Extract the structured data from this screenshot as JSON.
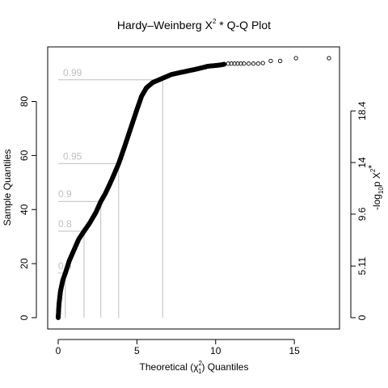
{
  "chart_data": {
    "type": "scatter",
    "title_parts": [
      "Hardy–Weinberg  X",
      "2",
      "  * Q-Q Plot"
    ],
    "xlabel_parts": [
      "Theoretical  (χ",
      "2",
      "1",
      ")  Quantiles"
    ],
    "ylabel": "Sample Quantiles",
    "y2label_parts": [
      "-log",
      "10",
      "p X",
      "2",
      "*"
    ],
    "xlim": [
      0,
      17.2
    ],
    "ylim": [
      0,
      96
    ],
    "x_ticks": [
      0,
      5,
      10,
      15
    ],
    "x_tick_labels": [
      "0",
      "5",
      "10",
      "15"
    ],
    "y_ticks": [
      0,
      20,
      40,
      60,
      80
    ],
    "y_tick_labels": [
      "0",
      "20",
      "40",
      "60",
      "80"
    ],
    "y2_ticks": [
      0,
      19.1,
      38.3,
      57.4,
      76.5
    ],
    "y2_tick_labels": [
      "0",
      "5.11",
      "9.6",
      "14",
      "18.4"
    ],
    "grid": false,
    "quantile_markers": [
      {
        "label": "0.5",
        "x": 0.455,
        "y": 16.5
      },
      {
        "label": "0.8",
        "x": 1.642,
        "y": 32
      },
      {
        "label": "0.9",
        "x": 2.706,
        "y": 43
      },
      {
        "label": "0.95",
        "x": 3.841,
        "y": 57
      },
      {
        "label": "0.99",
        "x": 6.635,
        "y": 88
      }
    ],
    "curve": [
      [
        0,
        0
      ],
      [
        0.05,
        5
      ],
      [
        0.15,
        10
      ],
      [
        0.3,
        14
      ],
      [
        0.455,
        16.5
      ],
      [
        0.7,
        21
      ],
      [
        1.0,
        25
      ],
      [
        1.3,
        29
      ],
      [
        1.642,
        32
      ],
      [
        2.0,
        35
      ],
      [
        2.4,
        39
      ],
      [
        2.706,
        43
      ],
      [
        3.0,
        46
      ],
      [
        3.4,
        51
      ],
      [
        3.841,
        57
      ],
      [
        4.2,
        63
      ],
      [
        4.6,
        70
      ],
      [
        5.0,
        77
      ],
      [
        5.3,
        82
      ],
      [
        5.6,
        85
      ],
      [
        6.0,
        87
      ],
      [
        6.4,
        88
      ],
      [
        6.8,
        89
      ],
      [
        7.2,
        90
      ],
      [
        8.0,
        91
      ],
      [
        8.8,
        92
      ],
      [
        9.5,
        93
      ],
      [
        10.3,
        93.5
      ],
      [
        10.6,
        93.8
      ]
    ],
    "tail_points": [
      [
        10.8,
        94
      ],
      [
        11.0,
        94
      ],
      [
        11.2,
        94
      ],
      [
        11.4,
        94
      ],
      [
        11.6,
        94
      ],
      [
        11.8,
        94
      ],
      [
        12.1,
        94
      ],
      [
        12.4,
        94
      ],
      [
        12.7,
        94
      ],
      [
        13.0,
        94.2
      ],
      [
        13.5,
        95
      ],
      [
        14.1,
        95
      ],
      [
        15.1,
        96
      ],
      [
        17.2,
        96
      ]
    ],
    "point_color": "#000000",
    "marker_color": "#bebebe"
  }
}
